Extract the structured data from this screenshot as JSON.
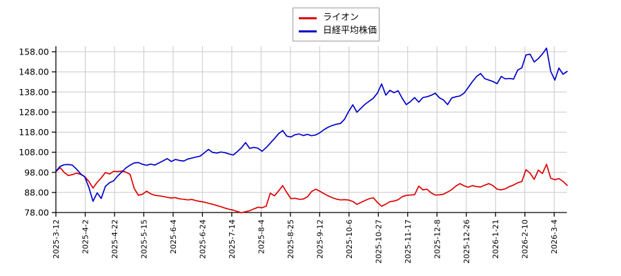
{
  "chart_data": {
    "type": "line",
    "title": "",
    "xlabel": "",
    "ylabel": "",
    "grid": true,
    "legend_position": "top-center",
    "background_color": "#ffffff",
    "grid_color": "#c8c8c8",
    "axis_color": "#000000",
    "ylim": [
      78,
      160.4
    ],
    "y_tick_values": [
      78,
      88,
      98,
      108,
      118,
      128,
      138,
      148,
      158
    ],
    "y_tick_labels": [
      "78.00",
      "88.00",
      "98.00",
      "108.00",
      "118.00",
      "128.00",
      "138.00",
      "148.00",
      "158.00"
    ],
    "x_tick_labels": [
      "2025-3-12",
      "2025-4-2",
      "2025-4-22",
      "2025-5-15",
      "2025-6-4",
      "2025-6-24",
      "2025-7-14",
      "2025-8-4",
      "2025-8-25",
      "2025-9-12",
      "2025-10-6",
      "2025-10-27",
      "2025-11-17",
      "2025-12-8",
      "2025-12-26",
      "2026-1-21",
      "2026-2-10",
      "2026-3-4"
    ],
    "legend": [
      {
        "name": "ライオン",
        "color": "#dd0000"
      },
      {
        "name": "日経平均株価",
        "color": "#0000cc"
      }
    ],
    "series": [
      {
        "name": "ライオン",
        "color": "#dd0000",
        "values": [
          98.3,
          100.4,
          98.0,
          96.4,
          96.9,
          97.6,
          97.0,
          95.9,
          93.4,
          90.2,
          93.0,
          95.2,
          97.9,
          97.2,
          98.5,
          98.4,
          98.6,
          98.1,
          97.0,
          90.0,
          86.6,
          87.1,
          88.6,
          87.3,
          86.6,
          86.3,
          86.0,
          85.6,
          85.2,
          85.4,
          84.8,
          84.6,
          84.3,
          84.5,
          83.9,
          83.5,
          83.2,
          82.6,
          82.1,
          81.5,
          80.9,
          80.2,
          79.6,
          79.2,
          78.5,
          77.9,
          78.4,
          78.9,
          79.8,
          80.6,
          80.4,
          81.2,
          87.6,
          86.3,
          88.7,
          91.4,
          88.0,
          84.9,
          85.1,
          84.6,
          84.7,
          85.8,
          88.4,
          89.6,
          88.6,
          87.4,
          86.3,
          85.4,
          84.7,
          84.3,
          84.4,
          84.2,
          83.5,
          82.1,
          83.0,
          84.0,
          84.9,
          85.3,
          83.0,
          81.1,
          82.2,
          83.4,
          83.7,
          84.4,
          85.9,
          86.5,
          86.7,
          86.9,
          91.1,
          89.3,
          89.6,
          87.8,
          86.7,
          86.8,
          87.1,
          88.2,
          89.4,
          91.2,
          92.4,
          91.3,
          90.6,
          91.4,
          90.9,
          90.7,
          91.6,
          92.4,
          91.4,
          89.6,
          89.3,
          89.8,
          90.9,
          91.7,
          92.8,
          93.4,
          99.3,
          97.6,
          94.5,
          99.1,
          97.4,
          102.0,
          95.1,
          94.3,
          94.9,
          93.5,
          91.5
        ]
      },
      {
        "name": "日経平均株価",
        "color": "#0000cc",
        "values": [
          98.5,
          100.9,
          101.8,
          101.9,
          101.6,
          99.6,
          97.2,
          95.8,
          90.5,
          83.6,
          87.8,
          85.0,
          91.0,
          92.8,
          93.8,
          96.2,
          98.2,
          100.2,
          101.6,
          102.7,
          102.9,
          102.0,
          101.5,
          102.1,
          101.6,
          102.7,
          103.7,
          104.8,
          103.4,
          104.4,
          103.9,
          103.6,
          104.6,
          105.1,
          105.6,
          106.1,
          107.7,
          109.4,
          107.9,
          107.6,
          108.1,
          107.8,
          107.1,
          106.6,
          108.3,
          110.2,
          112.8,
          109.9,
          110.4,
          110.0,
          108.5,
          110.3,
          112.5,
          114.8,
          117.2,
          118.8,
          116.0,
          115.6,
          116.7,
          117.1,
          116.3,
          116.9,
          116.2,
          116.6,
          117.7,
          119.2,
          120.4,
          121.3,
          121.9,
          122.3,
          124.4,
          128.3,
          131.6,
          127.9,
          129.9,
          131.9,
          133.4,
          134.9,
          137.5,
          142.0,
          136.4,
          138.8,
          137.6,
          138.6,
          134.8,
          131.7,
          133.2,
          135.2,
          132.9,
          135.2,
          135.6,
          136.3,
          137.4,
          135.1,
          134.0,
          131.7,
          135.0,
          135.6,
          136.0,
          137.4,
          140.2,
          143.1,
          145.6,
          147.2,
          144.6,
          143.9,
          143.2,
          142.1,
          145.7,
          144.5,
          144.7,
          144.4,
          148.9,
          150.0,
          156.4,
          156.8,
          152.9,
          154.6,
          156.9,
          159.8,
          148.3,
          143.9,
          149.9,
          146.8,
          148.2
        ]
      }
    ]
  }
}
